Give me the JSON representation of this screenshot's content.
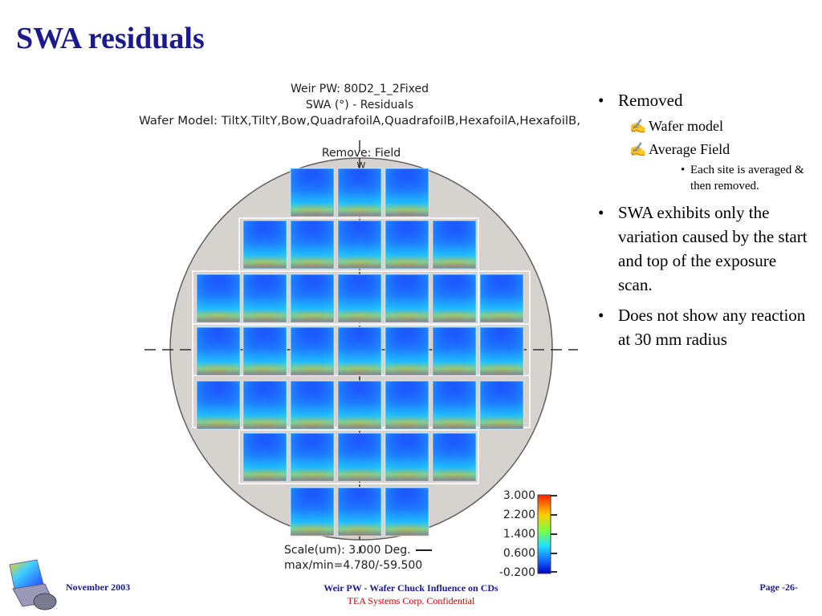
{
  "slide": {
    "title": "SWA residuals"
  },
  "figure": {
    "title_lines": [
      "Weir PW: 80D2_1_2Fixed",
      "SWA (°) - Residuals",
      "Wafer Model: TiltX,TiltY,Bow,QuadrafoilA,QuadrafoilB,HexafoilA,HexafoilB,"
    ],
    "remove_label": "Remove: Field",
    "notch_label": "W",
    "scale_line": "Scale(um): 3.000 Deg.",
    "maxmin_line": "max/min=4.780/-59.500",
    "colorbar_ticks": [
      "3.000",
      "2.200",
      "1.400",
      "0.600",
      "-0.200"
    ],
    "colors": {
      "wafer_fill": "#d6d3cf",
      "field_low": "#1a3cff",
      "field_mid": "#20d0ff",
      "field_high": "#ff3000"
    }
  },
  "bullets": {
    "removed": "Removed",
    "wafer_model": "Wafer model",
    "average_field": "Average Field",
    "each_site": "Each site is averaged & then removed.",
    "swa_exhibits": "SWA exhibits only the variation caused by the start and top of the exposure scan.",
    "no_reaction": "Does not show any reaction at 30 mm radius"
  },
  "footer": {
    "date": "November 2003",
    "center_line1": "Weir PW - Wafer Chuck Influence on CDs",
    "center_line2": "TEA Systems Corp. Confidential",
    "page": "Page -26-"
  }
}
